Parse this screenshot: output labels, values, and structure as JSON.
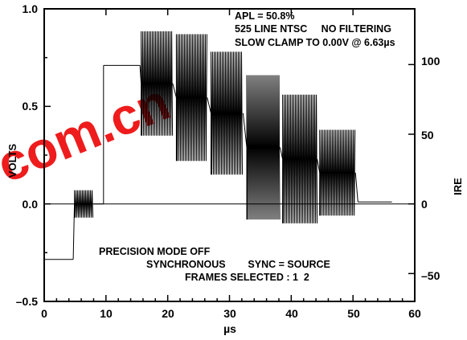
{
  "chart_data": {
    "type": "line",
    "xlabel": "µs",
    "ylabel_left": "VOLTS",
    "ylabel_right": "IRE",
    "xlim": [
      0,
      60
    ],
    "ylim_left": [
      -0.5,
      1.0
    ],
    "ylim_right_note": "IRE = volts × 140 / 1.0 (0 V = 0 IRE)",
    "x_ticks": [
      "0",
      "10",
      "20",
      "30",
      "40",
      "50",
      "60"
    ],
    "y_ticks_left": [
      "1.0",
      "0.5",
      "0.0",
      "–0.5"
    ],
    "y_ticks_right": [
      "100",
      "50",
      "0",
      "–50"
    ],
    "grid": false,
    "zero_line": true,
    "annotations_top": [
      "APL = 50.8%",
      "525 LINE NTSC     NO FILTERING",
      "SLOW CLAMP TO 0.00V @ 6.63µs"
    ],
    "annotations_bottom": [
      "PRECISION MODE OFF",
      "SYNCHRONOUS        SYNC = SOURCE",
      "FRAMES SELECTED : 1  2"
    ],
    "watermark": "com.cn",
    "series": [
      {
        "segments": [
          {
            "kind": "flat",
            "x": [
              0,
              4.7
            ],
            "v": -0.285
          },
          {
            "kind": "burst",
            "x": [
              4.9,
              8.0
            ],
            "center": 0.0,
            "amp": 0.07
          },
          {
            "kind": "flat",
            "x": [
              8.0,
              9.6
            ],
            "v": 0.0
          },
          {
            "kind": "flat",
            "x": [
              9.6,
              15.5
            ],
            "v": 0.71
          },
          {
            "kind": "burst",
            "x": [
              15.7,
              20.8
            ],
            "min": 0.35,
            "max": 0.885
          },
          {
            "kind": "burst",
            "x": [
              21.4,
              26.4
            ],
            "min": 0.22,
            "max": 0.87
          },
          {
            "kind": "burst",
            "x": [
              27.0,
              32.2
            ],
            "min": 0.15,
            "max": 0.78
          },
          {
            "kind": "burst",
            "x": [
              32.8,
              38.2
            ],
            "min": -0.08,
            "max": 0.66
          },
          {
            "kind": "burst",
            "x": [
              38.6,
              44.2
            ],
            "min": -0.1,
            "max": 0.56
          },
          {
            "kind": "burst",
            "x": [
              44.6,
              50.4
            ],
            "min": -0.06,
            "max": 0.38
          },
          {
            "kind": "flat",
            "x": [
              50.8,
              56.3
            ],
            "v": 0.01
          }
        ]
      }
    ]
  }
}
